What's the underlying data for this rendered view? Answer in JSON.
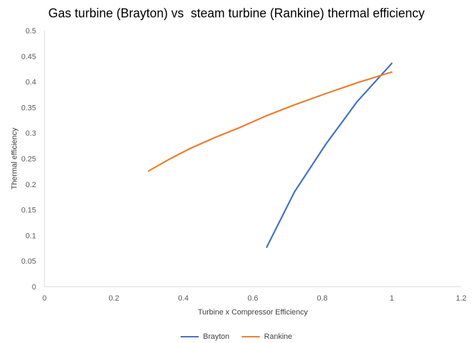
{
  "chart_data": {
    "type": "line",
    "title": "Gas turbine (Brayton) vs  steam turbine (Rankine) thermal efficiency",
    "xlabel": "Turbine x Compressor Efficiency",
    "ylabel": "Thermal efficiency",
    "xlim": [
      0,
      1.2
    ],
    "ylim": [
      0,
      0.5
    ],
    "x_ticks": [
      "0",
      "0.2",
      "0.4",
      "0.6",
      "0.8",
      "1",
      "1.2"
    ],
    "y_ticks": [
      "0",
      "0.05",
      "0.1",
      "0.15",
      "0.2",
      "0.25",
      "0.3",
      "0.35",
      "0.4",
      "0.45",
      "0.5"
    ],
    "grid": false,
    "legend": "bottom",
    "series": [
      {
        "name": "Brayton",
        "color": "#4472C4",
        "points": [
          [
            0.64,
            0.077
          ],
          [
            0.72,
            0.185
          ],
          [
            0.81,
            0.278
          ],
          [
            0.9,
            0.361
          ],
          [
            1.0,
            0.436
          ]
        ]
      },
      {
        "name": "Rankine",
        "color": "#ED7D31",
        "points": [
          [
            0.3,
            0.226
          ],
          [
            0.36,
            0.249
          ],
          [
            0.42,
            0.27
          ],
          [
            0.49,
            0.291
          ],
          [
            0.56,
            0.31
          ],
          [
            0.64,
            0.334
          ],
          [
            0.72,
            0.355
          ],
          [
            0.81,
            0.377
          ],
          [
            0.9,
            0.398
          ],
          [
            1.0,
            0.419
          ]
        ]
      }
    ]
  }
}
